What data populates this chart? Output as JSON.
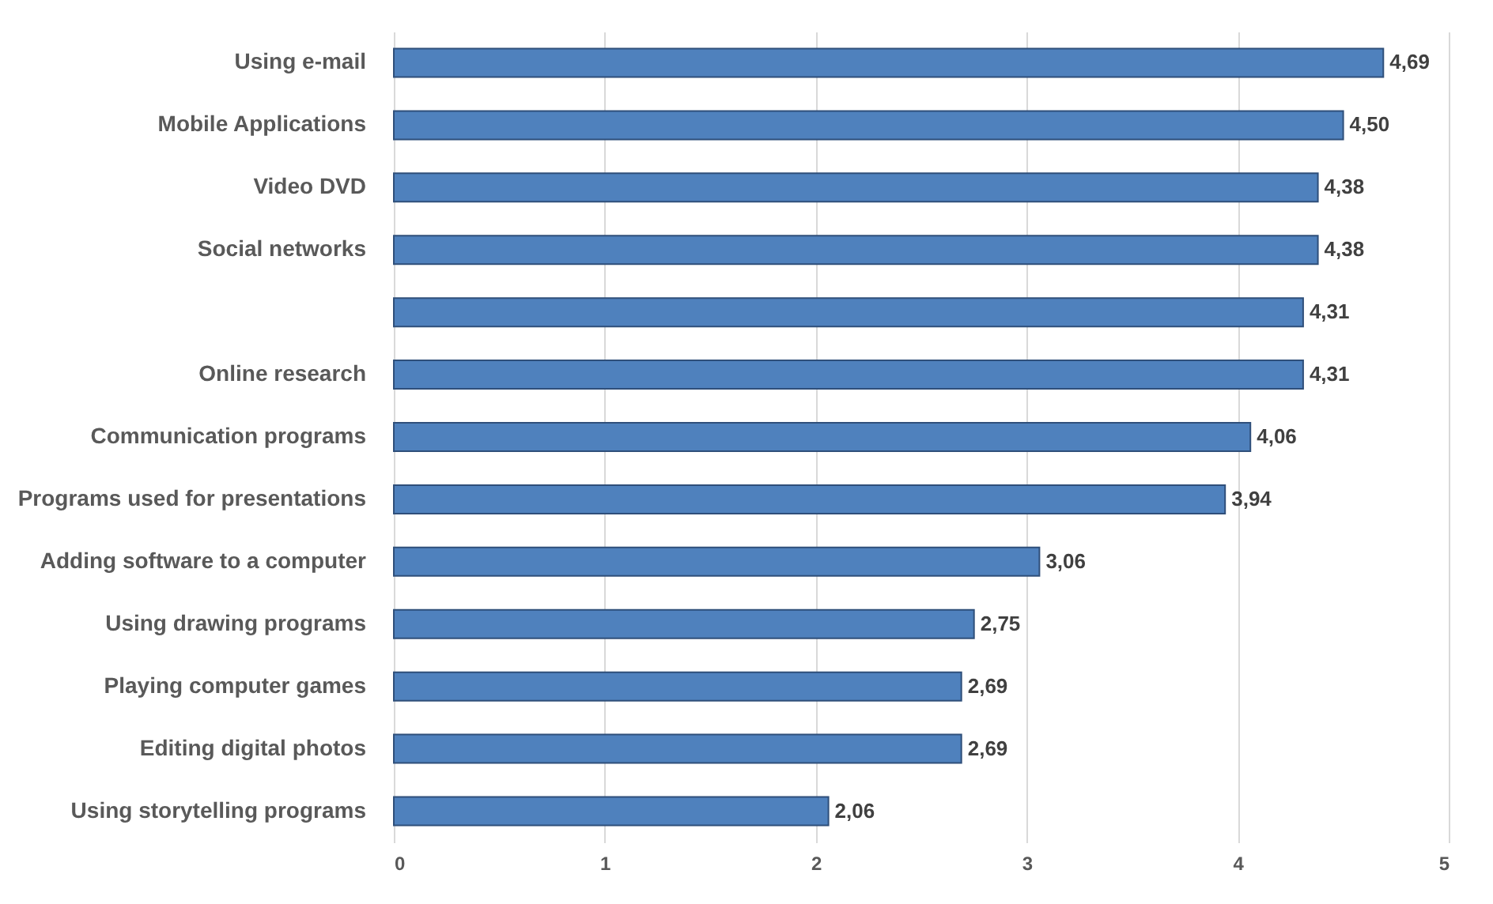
{
  "chart_data": {
    "type": "bar",
    "orientation": "horizontal",
    "categories": [
      "Using e-mail",
      "Mobile Applications",
      "Video DVD",
      "Social networks",
      null,
      "Online research",
      "Communication programs",
      "Programs used for presentations",
      "Adding software to a computer",
      "Using drawing programs",
      "Playing computer games",
      "Editing digital photos",
      "Using storytelling programs"
    ],
    "values": [
      4.69,
      4.5,
      4.38,
      4.38,
      4.31,
      4.31,
      4.06,
      3.94,
      3.06,
      2.75,
      2.69,
      2.69,
      2.06
    ],
    "value_labels": [
      "4,69",
      "4,50",
      "4,38",
      "4,38",
      "4,31",
      "4,31",
      "4,06",
      "3,94",
      "3,06",
      "2,75",
      "2,69",
      "2,69",
      "2,06"
    ],
    "color": "#4f81bd",
    "xlim": [
      0,
      5
    ],
    "xticks": [
      0,
      1,
      2,
      3,
      4,
      5
    ],
    "grid": "x"
  }
}
